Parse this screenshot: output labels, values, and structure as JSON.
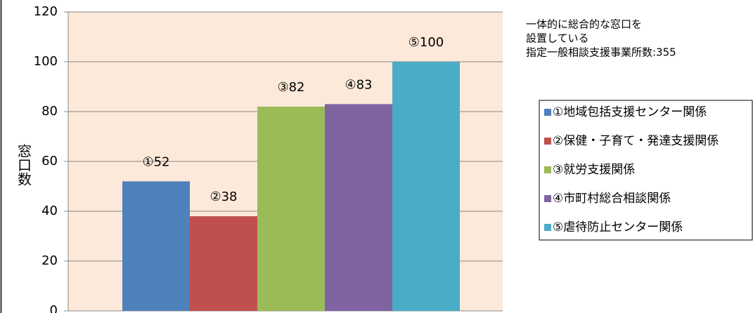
{
  "chart_data": {
    "type": "bar",
    "y_label": "窓口数",
    "annotation": [
      "一体的に総合的な窓口を",
      "設置している",
      "指定一般相談支援事業所数:355"
    ],
    "series": [
      {
        "name": "①地域包括支援センター関係",
        "color": "#4f81bd",
        "values": [
          52
        ],
        "value_labels": [
          "①52"
        ]
      },
      {
        "name": "②保健・子育て・発達支援関係",
        "color": "#c0504d",
        "values": [
          38
        ],
        "value_labels": [
          "②38"
        ]
      },
      {
        "name": "③就労支援関係",
        "color": "#9bbb59",
        "values": [
          82
        ],
        "value_labels": [
          "③82"
        ]
      },
      {
        "name": "④市町村総合相談関係",
        "color": "#8064a2",
        "values": [
          83
        ],
        "value_labels": [
          "④83"
        ]
      },
      {
        "name": "⑤虐待防止センター関係",
        "color": "#4bacc6",
        "values": [
          100
        ],
        "value_labels": [
          "⑤100"
        ]
      }
    ],
    "ylim": [
      0,
      120
    ],
    "yticks": [
      0,
      20,
      40,
      60,
      80,
      100,
      120
    ],
    "grid": true
  }
}
